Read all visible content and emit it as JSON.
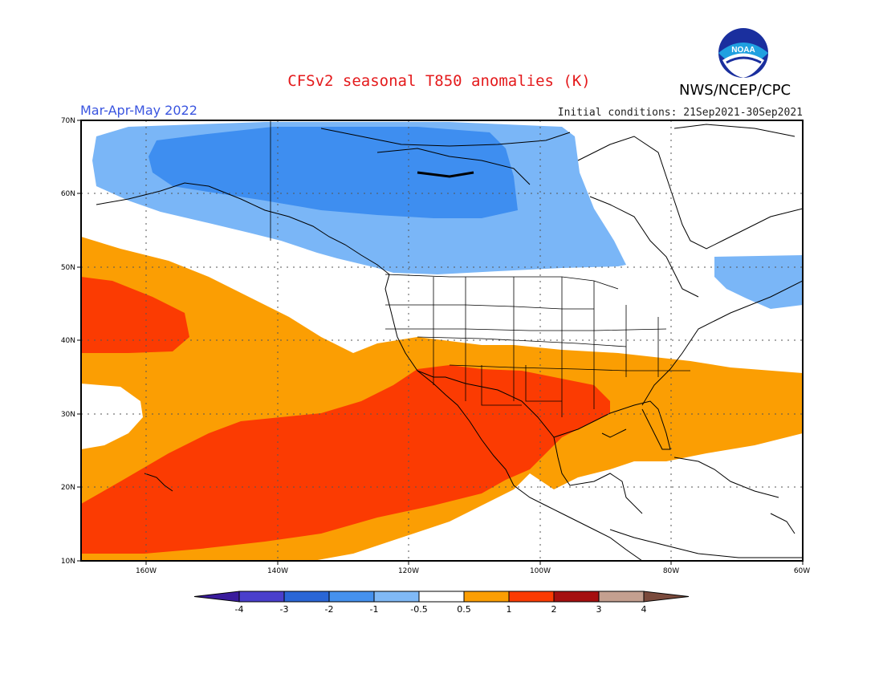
{
  "header": {
    "title": "CFSv2 seasonal T850 anomalies (K)",
    "season": "Mar-Apr-May 2022",
    "initial_conditions": "Initial conditions: 21Sep2021-30Sep2021",
    "agency": "NWS/NCEP/CPC",
    "logo_text": "NOAA"
  },
  "map": {
    "lat_labels": [
      "70N",
      "60N",
      "50N",
      "40N",
      "30N",
      "20N",
      "10N"
    ],
    "lon_labels": [
      "160W",
      "140W",
      "120W",
      "100W",
      "80W",
      "60W"
    ],
    "lon_range": [
      -171,
      -61
    ],
    "lat_range": [
      10,
      70
    ],
    "region": "North America and eastern Pacific"
  },
  "colorbar": {
    "labels": [
      "-4",
      "-3",
      "-2",
      "-1",
      "-0.5",
      "0.5",
      "1",
      "2",
      "3",
      "4"
    ],
    "colors": [
      "#3a1c9c",
      "#4a3fcc",
      "#2a66d6",
      "#4591ee",
      "#80b9f6",
      "#ffffff",
      "#fb9e03",
      "#fb3b02",
      "#a50f0f",
      "#c4a090",
      "#7a4a3c"
    ]
  },
  "anomaly_colors": {
    "blue_mid": "#3e8ef0",
    "blue_light": "#7ab6f7",
    "orange": "#fb9e03",
    "red": "#fb3b02"
  }
}
